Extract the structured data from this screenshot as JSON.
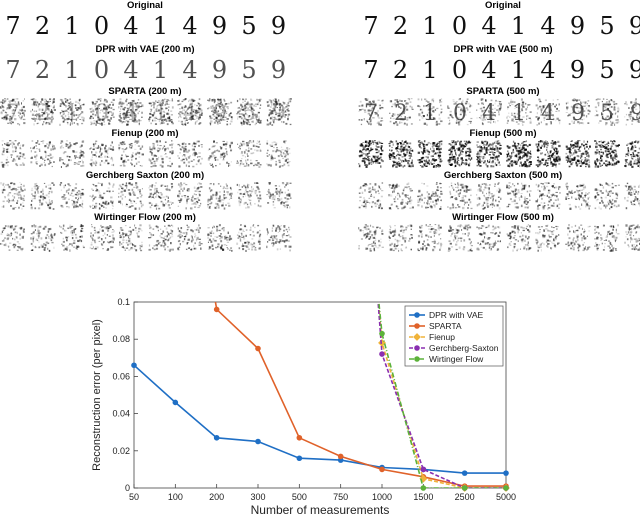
{
  "figure": {
    "digits": [
      "7",
      "2",
      "1",
      "0",
      "4",
      "1",
      "4",
      "9",
      "5",
      "9"
    ],
    "panels": [
      {
        "id": "left",
        "rows": [
          {
            "title": "Original",
            "kind": "clean"
          },
          {
            "title": "DPR with VAE (200 m)",
            "kind": "faint"
          },
          {
            "title": "SPARTA (200 m)",
            "kind": "blur"
          },
          {
            "title": "Fienup (200 m)",
            "kind": "noise"
          },
          {
            "title": "Gerchberg Saxton (200 m)",
            "kind": "noise"
          },
          {
            "title": "Wirtinger Flow (200 m)",
            "kind": "noise"
          }
        ]
      },
      {
        "id": "right",
        "rows": [
          {
            "title": "Original",
            "kind": "clean"
          },
          {
            "title": "DPR with VAE (500 m)",
            "kind": "clean"
          },
          {
            "title": "SPARTA (500 m)",
            "kind": "faint-noise"
          },
          {
            "title": "Fienup (500 m)",
            "kind": "noise-dark"
          },
          {
            "title": "Gerchberg Saxton (500 m)",
            "kind": "noise"
          },
          {
            "title": "Wirtinger Flow (500 m)",
            "kind": "noise"
          }
        ]
      }
    ]
  },
  "chart_data": {
    "type": "line",
    "xlabel": "Number of measurements",
    "ylabel": "Reconstruction error (per pixel)",
    "categories": [
      "50",
      "100",
      "200",
      "300",
      "500",
      "750",
      "1000",
      "1500",
      "2500",
      "5000"
    ],
    "ylim": [
      0,
      0.1
    ],
    "yticks": [
      "0",
      "0.02",
      "0.04",
      "0.06",
      "0.08",
      "0.1"
    ],
    "legend_position": "top-right",
    "series": [
      {
        "name": "DPR with VAE",
        "color": "#1f6fc5",
        "marker": "circle",
        "dash": "solid",
        "values": [
          0.066,
          0.046,
          0.027,
          0.025,
          0.016,
          0.015,
          0.011,
          0.01,
          0.008,
          0.008
        ]
      },
      {
        "name": "SPARTA",
        "color": "#e0622a",
        "marker": "circle",
        "dash": "solid",
        "values": [
          null,
          null,
          0.096,
          0.075,
          0.027,
          0.017,
          0.01,
          0.006,
          0.001,
          0.001
        ]
      },
      {
        "name": "Fienup",
        "color": "#f0b33a",
        "marker": "diamond",
        "dash": "dashed",
        "values": [
          null,
          null,
          null,
          null,
          null,
          null,
          0.078,
          0.005,
          0.0,
          0.0
        ]
      },
      {
        "name": "Gerchberg-Saxton",
        "color": "#8a2fb0",
        "marker": "circle",
        "dash": "dashed",
        "values": [
          null,
          null,
          null,
          null,
          null,
          null,
          0.072,
          0.01,
          0.0,
          0.0
        ]
      },
      {
        "name": "Wirtinger Flow",
        "color": "#5cb23a",
        "marker": "circle",
        "dash": "dashdot",
        "values": [
          null,
          null,
          null,
          null,
          null,
          null,
          0.083,
          0.0,
          0.0,
          0.0
        ]
      }
    ]
  }
}
